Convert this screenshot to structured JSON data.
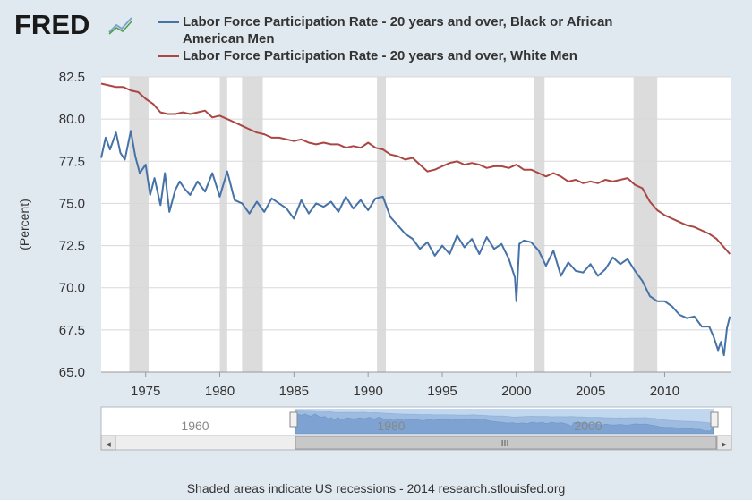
{
  "header": {
    "logo_text": "FRED",
    "logo_icon": "fred-graph-icon"
  },
  "chart_data": {
    "type": "line",
    "title": "",
    "xlabel": "",
    "ylabel": "(Percent)",
    "xlim": [
      1972,
      2014.5
    ],
    "ylim": [
      65.0,
      82.5
    ],
    "y_ticks": [
      "82.5",
      "80.0",
      "77.5",
      "75.0",
      "72.5",
      "70.0",
      "67.5",
      "65.0"
    ],
    "x_ticks": [
      "1975",
      "1980",
      "1985",
      "1990",
      "1995",
      "2000",
      "2005",
      "2010"
    ],
    "grid": true,
    "legend_position": "top",
    "recessions": [
      [
        1973.9,
        1975.2
      ],
      [
        1980.0,
        1980.5
      ],
      [
        1981.5,
        1982.9
      ],
      [
        1990.6,
        1991.2
      ],
      [
        2001.2,
        2001.9
      ],
      [
        2007.9,
        2009.5
      ]
    ],
    "series": [
      {
        "name": "Labor Force Participation Rate - 20 years and over, Black or African American Men",
        "color": "#4572a7",
        "x": [
          1972.0,
          1972.3,
          1972.6,
          1973.0,
          1973.3,
          1973.6,
          1974.0,
          1974.3,
          1974.6,
          1975.0,
          1975.3,
          1975.6,
          1976.0,
          1976.3,
          1976.6,
          1977.0,
          1977.3,
          1977.6,
          1978.0,
          1978.5,
          1979.0,
          1979.5,
          1980.0,
          1980.5,
          1981.0,
          1981.5,
          1982.0,
          1982.5,
          1983.0,
          1983.5,
          1984.0,
          1984.5,
          1985.0,
          1985.5,
          1986.0,
          1986.5,
          1987.0,
          1987.5,
          1988.0,
          1988.5,
          1989.0,
          1989.5,
          1990.0,
          1990.5,
          1991.0,
          1991.5,
          1992.0,
          1992.5,
          1993.0,
          1993.5,
          1994.0,
          1994.5,
          1995.0,
          1995.5,
          1996.0,
          1996.5,
          1997.0,
          1997.5,
          1998.0,
          1998.5,
          1999.0,
          1999.5,
          1999.9,
          2000.0,
          2000.2,
          2000.5,
          2001.0,
          2001.5,
          2002.0,
          2002.5,
          2003.0,
          2003.5,
          2004.0,
          2004.5,
          2005.0,
          2005.5,
          2006.0,
          2006.5,
          2007.0,
          2007.5,
          2008.0,
          2008.5,
          2009.0,
          2009.5,
          2010.0,
          2010.5,
          2011.0,
          2011.5,
          2012.0,
          2012.5,
          2013.0,
          2013.3,
          2013.6,
          2013.8,
          2014.0,
          2014.2,
          2014.4
        ],
        "values": [
          77.7,
          78.9,
          78.2,
          79.2,
          78.0,
          77.6,
          79.3,
          77.8,
          76.8,
          77.3,
          75.5,
          76.5,
          74.9,
          76.8,
          74.5,
          75.8,
          76.3,
          75.9,
          75.5,
          76.3,
          75.7,
          76.8,
          75.4,
          76.9,
          75.2,
          75.0,
          74.4,
          75.1,
          74.5,
          75.3,
          75.0,
          74.7,
          74.1,
          75.2,
          74.4,
          75.0,
          74.8,
          75.1,
          74.5,
          75.4,
          74.7,
          75.2,
          74.6,
          75.3,
          75.4,
          74.2,
          73.7,
          73.2,
          72.9,
          72.3,
          72.7,
          71.9,
          72.5,
          72.0,
          73.1,
          72.4,
          72.9,
          72.0,
          73.0,
          72.3,
          72.6,
          71.7,
          70.6,
          69.2,
          72.6,
          72.8,
          72.7,
          72.2,
          71.3,
          72.2,
          70.7,
          71.5,
          71.0,
          70.9,
          71.4,
          70.7,
          71.1,
          71.8,
          71.4,
          71.7,
          71.0,
          70.4,
          69.5,
          69.2,
          69.2,
          68.9,
          68.4,
          68.2,
          68.3,
          67.7,
          67.7,
          67.1,
          66.3,
          66.8,
          66.0,
          67.6,
          68.3
        ]
      },
      {
        "name": "Labor Force Participation Rate - 20 years and over, White Men",
        "color": "#aa4643",
        "x": [
          1972.0,
          1972.5,
          1973.0,
          1973.5,
          1974.0,
          1974.5,
          1975.0,
          1975.5,
          1976.0,
          1976.5,
          1977.0,
          1977.5,
          1978.0,
          1978.5,
          1979.0,
          1979.5,
          1980.0,
          1980.5,
          1981.0,
          1981.5,
          1982.0,
          1982.5,
          1983.0,
          1983.5,
          1984.0,
          1984.5,
          1985.0,
          1985.5,
          1986.0,
          1986.5,
          1987.0,
          1987.5,
          1988.0,
          1988.5,
          1989.0,
          1989.5,
          1990.0,
          1990.5,
          1991.0,
          1991.5,
          1992.0,
          1992.5,
          1993.0,
          1993.5,
          1994.0,
          1994.5,
          1995.0,
          1995.5,
          1996.0,
          1996.5,
          1997.0,
          1997.5,
          1998.0,
          1998.5,
          1999.0,
          1999.5,
          2000.0,
          2000.5,
          2001.0,
          2001.5,
          2002.0,
          2002.5,
          2003.0,
          2003.5,
          2004.0,
          2004.5,
          2005.0,
          2005.5,
          2006.0,
          2006.5,
          2007.0,
          2007.5,
          2008.0,
          2008.5,
          2009.0,
          2009.5,
          2010.0,
          2010.5,
          2011.0,
          2011.5,
          2012.0,
          2012.5,
          2013.0,
          2013.5,
          2014.0,
          2014.4
        ],
        "values": [
          82.1,
          82.0,
          81.9,
          81.9,
          81.7,
          81.6,
          81.2,
          80.9,
          80.4,
          80.3,
          80.3,
          80.4,
          80.3,
          80.4,
          80.5,
          80.1,
          80.2,
          80.0,
          79.8,
          79.6,
          79.4,
          79.2,
          79.1,
          78.9,
          78.9,
          78.8,
          78.7,
          78.8,
          78.6,
          78.5,
          78.6,
          78.5,
          78.5,
          78.3,
          78.4,
          78.3,
          78.6,
          78.3,
          78.2,
          77.9,
          77.8,
          77.6,
          77.7,
          77.3,
          76.9,
          77.0,
          77.2,
          77.4,
          77.5,
          77.3,
          77.4,
          77.3,
          77.1,
          77.2,
          77.2,
          77.1,
          77.3,
          77.0,
          77.0,
          76.8,
          76.6,
          76.8,
          76.6,
          76.3,
          76.4,
          76.2,
          76.3,
          76.2,
          76.4,
          76.3,
          76.4,
          76.5,
          76.1,
          75.9,
          75.1,
          74.6,
          74.3,
          74.1,
          73.9,
          73.7,
          73.6,
          73.4,
          73.2,
          72.9,
          72.4,
          72.0
        ]
      }
    ]
  },
  "navigator": {
    "labels": [
      "1960",
      "1980",
      "2000"
    ],
    "scroll_left": "◂",
    "scroll_right": "▸",
    "scroll_grip": "III"
  },
  "footer": {
    "text": "Shaded areas indicate US recessions - 2014 research.stlouisfed.org"
  }
}
